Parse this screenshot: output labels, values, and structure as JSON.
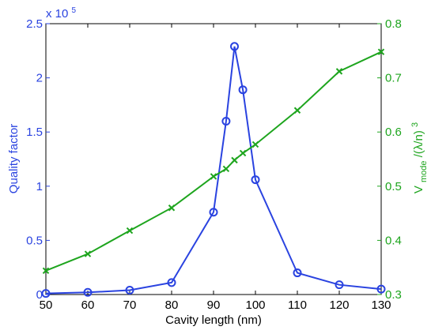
{
  "chart_data": {
    "type": "line",
    "xlabel": "Cavity length (nm)",
    "xlim": [
      50,
      130
    ],
    "xticks": [
      50,
      60,
      70,
      80,
      90,
      100,
      110,
      120,
      130
    ],
    "grid": false,
    "axes_left": {
      "label": "Quality factor",
      "color": "#2a43e0",
      "ylim": [
        0,
        2.5
      ],
      "ticks": [
        0,
        0.5,
        1,
        1.5,
        2,
        2.5
      ],
      "tick_labels": [
        "0",
        "0.5",
        "1",
        "1.5",
        "2",
        "2.5"
      ],
      "multiplier_label": "x 10",
      "multiplier_exponent": "5"
    },
    "axes_right": {
      "label_main": "V",
      "label_sub": "mode",
      "label_tail": "/(λ/n)",
      "label_sup": "3",
      "color": "#1ea51e",
      "ylim": [
        0.3,
        0.8
      ],
      "ticks": [
        0.3,
        0.4,
        0.5,
        0.6,
        0.7,
        0.8
      ],
      "tick_labels": [
        "0.3",
        "0.4",
        "0.5",
        "0.6",
        "0.7",
        "0.8"
      ]
    },
    "series": [
      {
        "axis": "left",
        "marker": "circle",
        "color": "#2a43e0",
        "x": [
          50,
          60,
          70,
          80,
          90,
          93,
          95,
          97,
          100,
          110,
          120,
          130
        ],
        "y": [
          0.01,
          0.02,
          0.04,
          0.11,
          0.76,
          1.6,
          2.29,
          1.89,
          1.06,
          0.2,
          0.09,
          0.05
        ]
      },
      {
        "axis": "right",
        "marker": "x",
        "color": "#1ea51e",
        "x": [
          50,
          60,
          70,
          80,
          90,
          93,
          95,
          97,
          100,
          110,
          120,
          130
        ],
        "y": [
          0.344,
          0.375,
          0.418,
          0.46,
          0.518,
          0.532,
          0.548,
          0.561,
          0.577,
          0.64,
          0.712,
          0.748
        ]
      }
    ]
  }
}
